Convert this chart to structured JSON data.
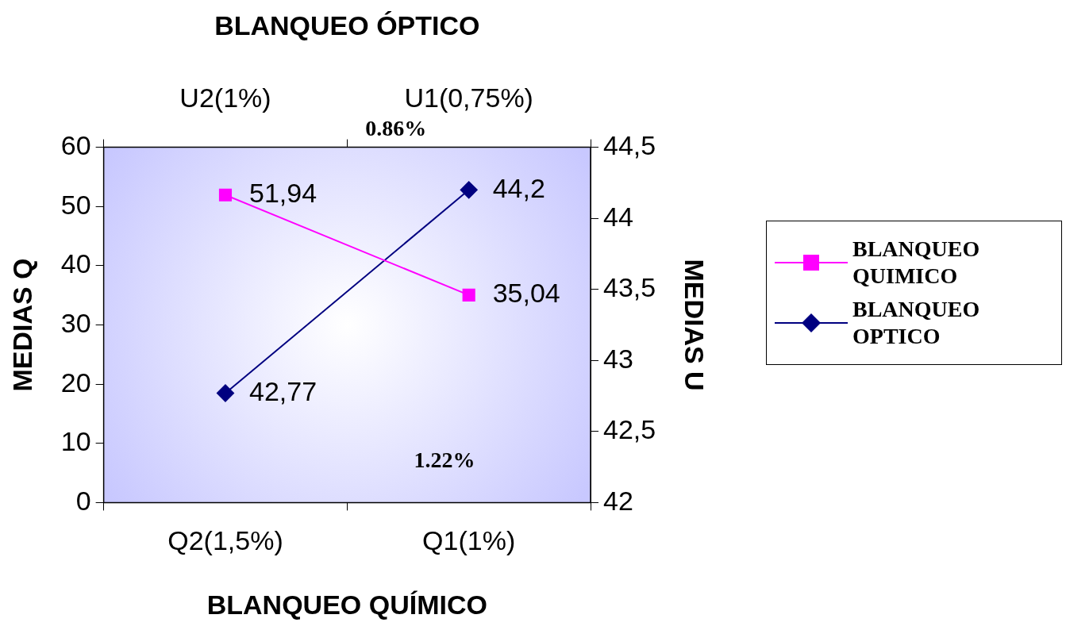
{
  "chart_data": {
    "type": "line",
    "xlabel": "BLANQUEO QUÍMICO",
    "x2label": "BLANQUEO ÓPTICO",
    "ylabel": "MEDIAS Q",
    "y2label": "MEDIAS U",
    "categories": [
      "Q2(1,5%)",
      "Q1(1%)"
    ],
    "series": [
      {
        "name": "BLANQUEO QUIMICO",
        "color": "#ff00ff",
        "values": [
          51.94,
          35.04
        ],
        "value_labels": [
          "51,94",
          "35,04"
        ],
        "marker": "square"
      },
      {
        "name": "BLANQUEO OPTICO",
        "color": "#000080",
        "values": [
          42.77,
          44.2
        ],
        "value_labels": [
          "42,77",
          "44,2"
        ],
        "marker": "diamond",
        "axis": "y2"
      }
    ],
    "ylim": [
      0,
      60
    ],
    "yticks": [
      0,
      10,
      20,
      30,
      40,
      50,
      60
    ],
    "y2lim": [
      42,
      44.5
    ],
    "y2ticks": [
      42,
      {
        "value": 42.5,
        "label": "42,5"
      },
      43,
      {
        "value": 43.5,
        "label": "43,5"
      },
      44,
      {
        "value": 44.5,
        "label": "44,5"
      }
    ],
    "annotations": [
      "0.86%",
      "1.22%",
      "U2(1%)",
      "U1(0,75%)"
    ],
    "legend": "right",
    "line_style": "solid"
  }
}
